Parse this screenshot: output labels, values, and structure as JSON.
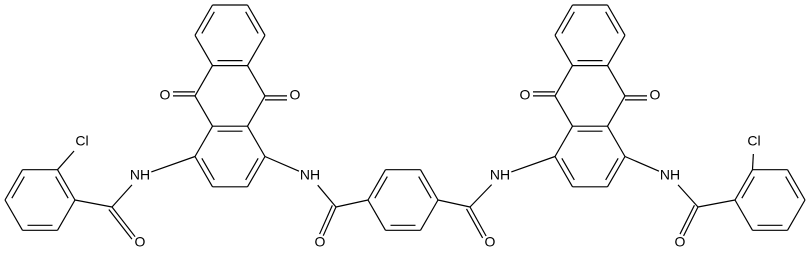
{
  "labels": [
    "Cl",
    "NH",
    "O",
    "O",
    "O",
    "NH",
    "O",
    "O",
    "NH",
    "O",
    "O",
    "NH",
    "O",
    "Cl"
  ]
}
